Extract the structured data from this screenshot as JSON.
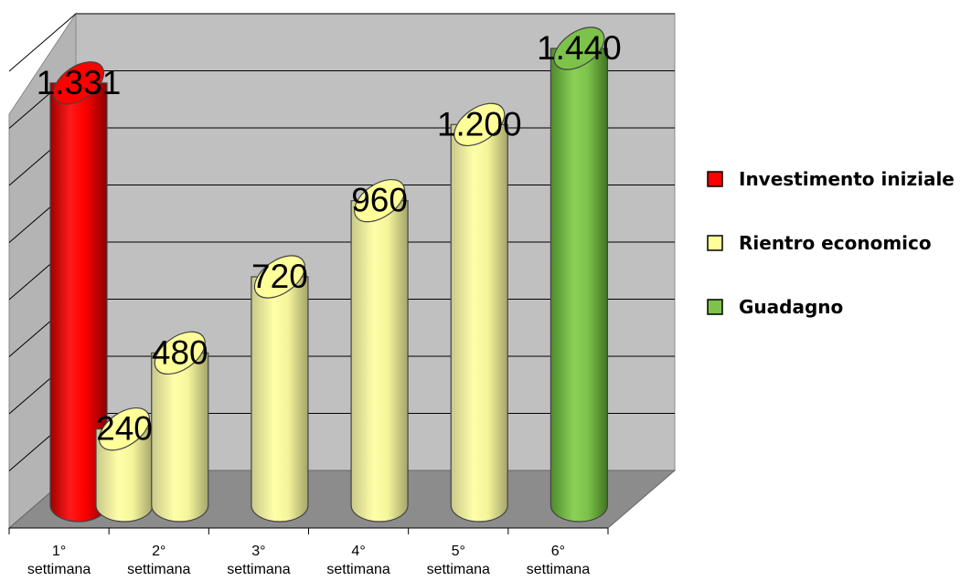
{
  "chart_data": {
    "type": "bar",
    "title": "",
    "xlabel": "",
    "ylabel": "",
    "categories": [
      [
        "1°",
        "settimana"
      ],
      [
        "2°",
        "settimana"
      ],
      [
        "3°",
        "settimana"
      ],
      [
        "4°",
        "settimana"
      ],
      [
        "5°",
        "settimana"
      ],
      [
        "6°",
        "settimana"
      ]
    ],
    "ylim": [
      0,
      1440
    ],
    "grid": true,
    "three_d": true,
    "bar_shape": "cylinder",
    "legend_position": "right",
    "series": [
      {
        "name": "Investimento iniziale",
        "color": "#ff0000",
        "values": [
          1331,
          null,
          null,
          null,
          null,
          null
        ],
        "labels": [
          "1.331",
          "",
          "",
          "",
          "",
          ""
        ]
      },
      {
        "name": "Rientro economico",
        "color": "#ffff99",
        "values": [
          240,
          480,
          720,
          960,
          1200,
          null
        ],
        "labels": [
          "240",
          "480",
          "720",
          "960",
          "1.200",
          ""
        ]
      },
      {
        "name": "Guadagno",
        "color": "#7dc24a",
        "values": [
          null,
          null,
          null,
          null,
          null,
          1440
        ],
        "labels": [
          "",
          "",
          "",
          "",
          "",
          "1.440"
        ]
      }
    ],
    "colors": {
      "back_wall": "#c0c0c0",
      "side_wall": "#b4b4b4",
      "floor": "#8c8c8c",
      "gridline": "#000000"
    }
  }
}
